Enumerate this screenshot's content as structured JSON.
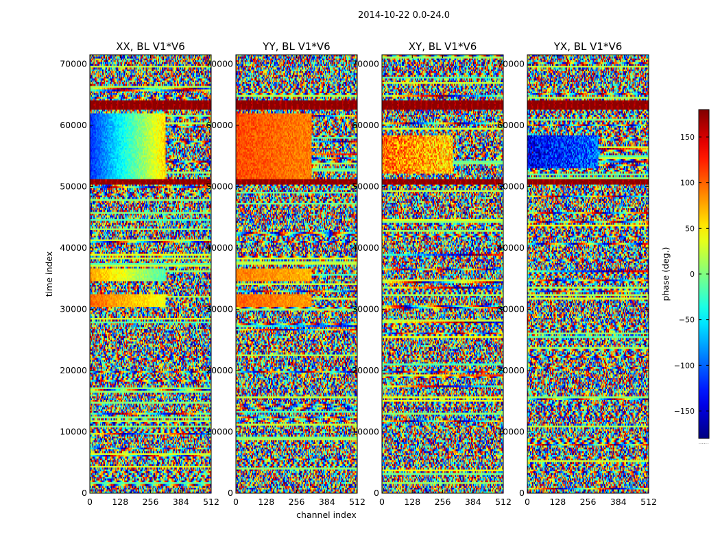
{
  "chart_data": {
    "type": "heatmap",
    "title": "2014-10-22 0.0-24.0",
    "xlabel": "channel index",
    "ylabel": "time index",
    "xlim": [
      0,
      512
    ],
    "ylim": [
      0,
      71500
    ],
    "x_ticks": [
      0,
      128,
      256,
      384,
      512
    ],
    "y_ticks": [
      0,
      10000,
      20000,
      30000,
      40000,
      50000,
      60000,
      70000
    ],
    "colormap": "jet",
    "colorbar": {
      "label": "phase (deg.)",
      "range": [
        -180,
        180
      ],
      "ticks": [
        150,
        100,
        50,
        0,
        -50,
        -100,
        -150
      ],
      "tick_labels": [
        "150",
        "100",
        "50",
        "0",
        "−50",
        "−100",
        "−150"
      ],
      "bottom_label": "......"
    },
    "panels": [
      {
        "title": "XX, BL V1*V6",
        "regions": [
          {
            "t0": 50500,
            "t1": 62000,
            "c0": 0,
            "c1": 320,
            "phase_left": -120,
            "phase_right": 60,
            "noise": 35
          },
          {
            "t0": 30500,
            "t1": 32500,
            "c0": 0,
            "c1": 320,
            "phase_left": 100,
            "phase_right": 40,
            "noise": 30
          },
          {
            "t0": 34500,
            "t1": 36500,
            "c0": 0,
            "c1": 320,
            "phase_left": 80,
            "phase_right": -20,
            "noise": 30
          }
        ],
        "flag_bands": [
          [
            50300,
            51200
          ],
          [
            62500,
            64000
          ]
        ]
      },
      {
        "title": "YY, BL V1*V6",
        "regions": [
          {
            "t0": 50500,
            "t1": 62000,
            "c0": 0,
            "c1": 320,
            "phase_left": 110,
            "phase_right": 90,
            "noise": 35
          },
          {
            "t0": 30500,
            "t1": 32500,
            "c0": 0,
            "c1": 320,
            "phase_left": 100,
            "phase_right": 80,
            "noise": 30
          },
          {
            "t0": 34500,
            "t1": 36500,
            "c0": 0,
            "c1": 320,
            "phase_left": 90,
            "phase_right": 70,
            "noise": 30
          }
        ],
        "flag_bands": [
          [
            50300,
            51200
          ],
          [
            62500,
            64000
          ]
        ]
      },
      {
        "title": "XY, BL V1*V6",
        "regions": [
          {
            "t0": 52000,
            "t1": 58500,
            "c0": 0,
            "c1": 300,
            "phase_left": 100,
            "phase_right": 60,
            "noise": 90
          }
        ],
        "flag_bands": [
          [
            50300,
            51200
          ],
          [
            62500,
            64000
          ]
        ]
      },
      {
        "title": "YX, BL V1*V6",
        "regions": [
          {
            "t0": 53000,
            "t1": 58500,
            "c0": 0,
            "c1": 300,
            "phase_left": -140,
            "phase_right": -100,
            "noise": 90
          }
        ],
        "flag_bands": [
          [
            50300,
            51200
          ],
          [
            62500,
            64000
          ]
        ]
      }
    ]
  }
}
